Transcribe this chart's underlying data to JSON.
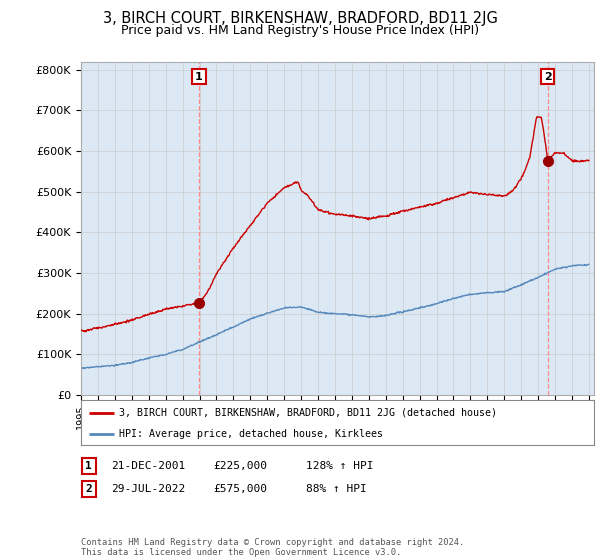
{
  "title": "3, BIRCH COURT, BIRKENSHAW, BRADFORD, BD11 2JG",
  "subtitle": "Price paid vs. HM Land Registry's House Price Index (HPI)",
  "title_fontsize": 10.5,
  "subtitle_fontsize": 9,
  "ylabel_ticks": [
    "£0",
    "£100K",
    "£200K",
    "£300K",
    "£400K",
    "£500K",
    "£600K",
    "£700K",
    "£800K"
  ],
  "ytick_values": [
    0,
    100000,
    200000,
    300000,
    400000,
    500000,
    600000,
    700000,
    800000
  ],
  "ylim": [
    0,
    820000
  ],
  "xlim_start": 1995.0,
  "xlim_end": 2025.3,
  "xtick_years": [
    1995,
    1996,
    1997,
    1998,
    1999,
    2000,
    2001,
    2002,
    2003,
    2004,
    2005,
    2006,
    2007,
    2008,
    2009,
    2010,
    2011,
    2012,
    2013,
    2014,
    2015,
    2016,
    2017,
    2018,
    2019,
    2020,
    2021,
    2022,
    2023,
    2024,
    2025
  ],
  "purchase1_x": 2001.97,
  "purchase1_y": 225000,
  "purchase2_x": 2022.57,
  "purchase2_y": 575000,
  "vline_color": "#ff8888",
  "marker_color": "#990000",
  "marker_size": 7,
  "legend_line1_label": "3, BIRCH COURT, BIRKENSHAW, BRADFORD, BD11 2JG (detached house)",
  "legend_line2_label": "HPI: Average price, detached house, Kirklees",
  "footer": "Contains HM Land Registry data © Crown copyright and database right 2024.\nThis data is licensed under the Open Government Licence v3.0.",
  "grid_color": "#cccccc",
  "bg_color": "#ffffff",
  "plot_bg_color": "#dce9f5",
  "hpi_line_color": "#5588bb",
  "red_line_color": "#cc0000",
  "label_box_color": "#cc0000"
}
